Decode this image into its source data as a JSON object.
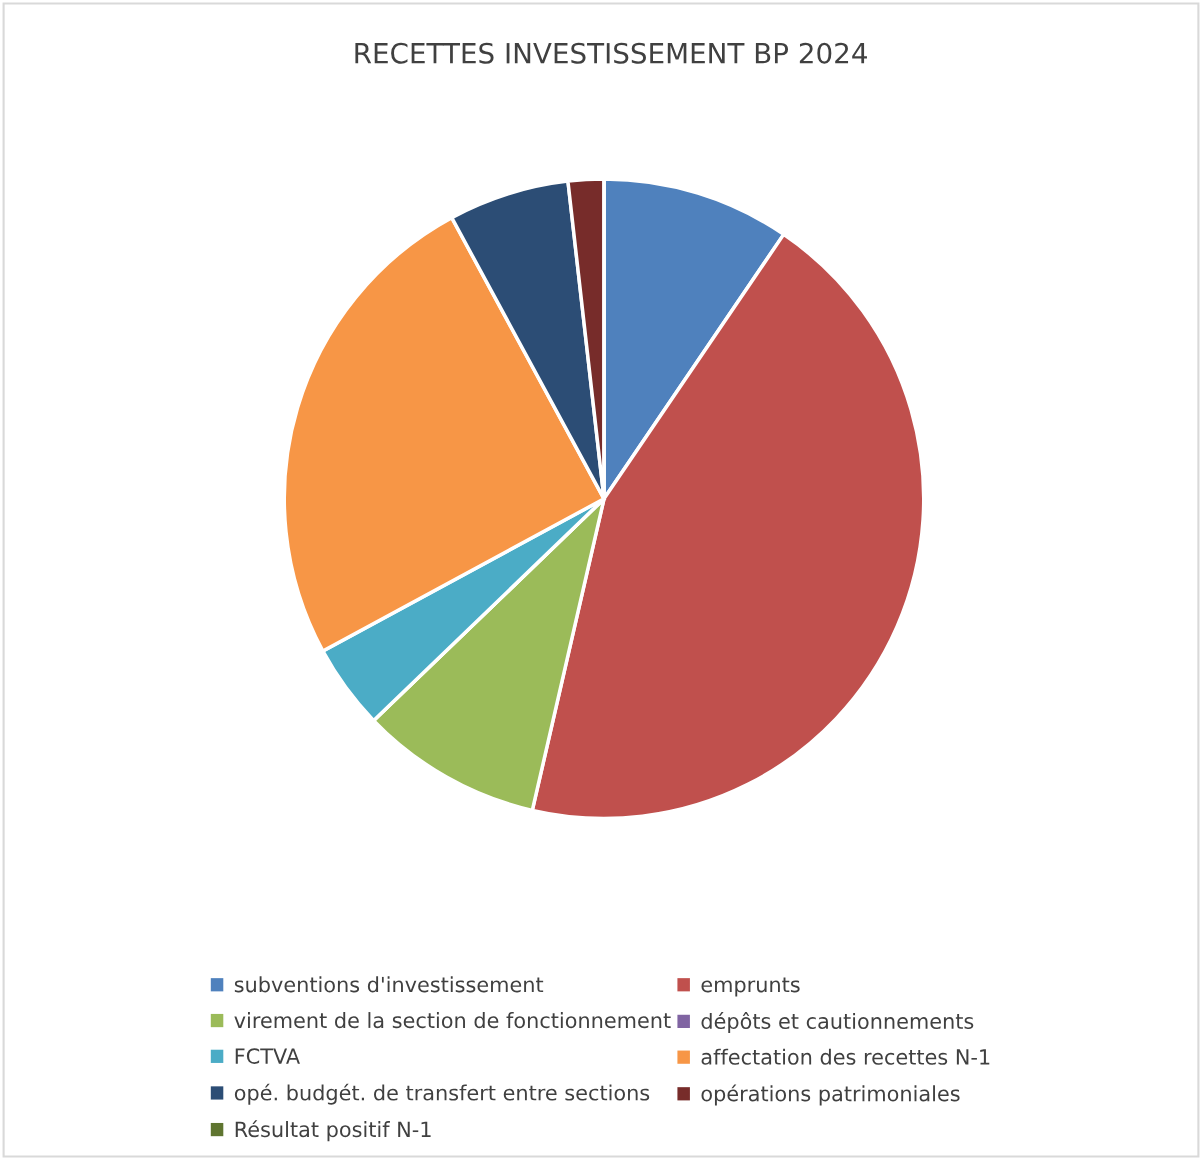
{
  "chart_data": {
    "type": "pie",
    "title": "RECETTES INVESTISSEMENT BP 2024",
    "categories": [
      "subventions d'investissement",
      "emprunts",
      "virement de la section de fonctionnement",
      "dépôts et cautionnements",
      "FCTVA",
      "affectation des recettes N-1",
      "opé. budgét. de transfert entre sections",
      "opérations patrimoniales",
      "Résultat positif N-1"
    ],
    "values": [
      9.5,
      44.1,
      9.2,
      0,
      4.3,
      25.0,
      6.1,
      1.8,
      0
    ],
    "colors": [
      "#4f81bd",
      "#c0504d",
      "#9bbb59",
      "#8064a2",
      "#4bacc6",
      "#f79646",
      "#2c4d75",
      "#772c2a",
      "#5f7530"
    ],
    "legend": "bottom"
  }
}
